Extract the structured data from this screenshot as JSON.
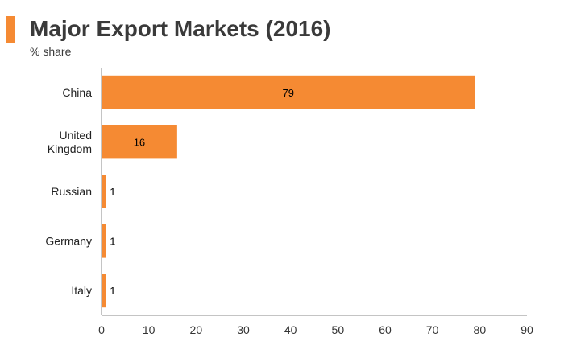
{
  "colors": {
    "accent": "#f58a33",
    "axis": "#888888"
  },
  "chart_data": {
    "type": "bar",
    "orientation": "horizontal",
    "title": "Major Export Markets (2016)",
    "subtitle": "% share",
    "categories": [
      [
        "China"
      ],
      [
        "United",
        "Kingdom"
      ],
      [
        "Russian"
      ],
      [
        "Germany"
      ],
      [
        "Italy"
      ]
    ],
    "values": [
      79,
      16,
      1,
      1,
      1
    ],
    "data_labels": [
      "79",
      "16",
      "1",
      "1",
      "1"
    ],
    "xlim": [
      0,
      90
    ],
    "xticks": [
      0,
      10,
      20,
      30,
      40,
      50,
      60,
      70,
      80,
      90
    ],
    "grid": false,
    "legend": "none"
  }
}
